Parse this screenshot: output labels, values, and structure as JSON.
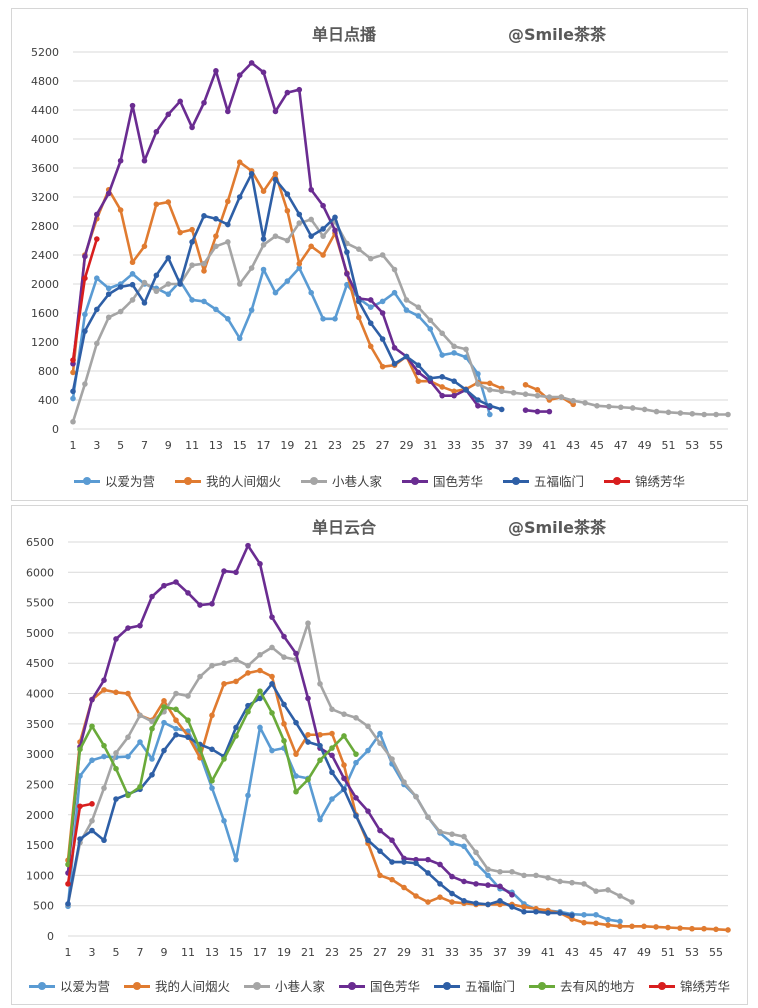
{
  "colors": {
    "以爱为营": "#5a9bd3",
    "我的人间烟火": "#e07b30",
    "小巷人家": "#a5a5a5",
    "国色芳华": "#6a2c91",
    "五福临门": "#2e5fa6",
    "去有风的地方": "#6aaa3a",
    "锦绣芳华": "#d81e1e"
  },
  "chart_data": [
    {
      "type": "line",
      "title": "单日点播",
      "watermark": "@Smile茶茶",
      "ylim": [
        0,
        5200
      ],
      "yticks": [
        0,
        400,
        800,
        1200,
        1600,
        2000,
        2400,
        2800,
        3200,
        3600,
        4000,
        4400,
        4800,
        5200
      ],
      "xlim": [
        1,
        56
      ],
      "xticks": [
        1,
        3,
        5,
        7,
        9,
        11,
        13,
        15,
        17,
        19,
        21,
        23,
        25,
        27,
        29,
        31,
        33,
        35,
        37,
        39,
        41,
        43,
        45,
        47,
        49,
        51,
        53,
        55
      ],
      "grid": "horizontal",
      "legend": "bottom",
      "series": [
        {
          "name": "以爱为营",
          "x_start": 1,
          "values": [
            420,
            1580,
            2080,
            1940,
            2000,
            2140,
            2000,
            1940,
            1860,
            2040,
            1780,
            1760,
            1650,
            1520,
            1250,
            1640,
            2200,
            1880,
            2040,
            2220,
            1880,
            1520,
            1520,
            1990,
            1800,
            1680,
            1760,
            1880,
            1640,
            1560,
            1380,
            1020,
            1050,
            990,
            760,
            200
          ]
        },
        {
          "name": "我的人间烟火",
          "x_start": 1,
          "values": [
            780,
            2400,
            2900,
            3300,
            3020,
            2300,
            2520,
            3100,
            3130,
            2710,
            2750,
            2180,
            2660,
            3140,
            3680,
            3560,
            3280,
            3520,
            3010,
            2280,
            2520,
            2400,
            2700,
            2150,
            1540,
            1140,
            860,
            880,
            1000,
            660,
            660,
            580,
            520,
            550,
            640,
            630,
            560,
            null,
            610,
            540,
            400,
            440,
            340
          ]
        },
        {
          "name": "小巷人家",
          "x_start": 1,
          "values": [
            100,
            620,
            1180,
            1540,
            1620,
            1780,
            2020,
            1900,
            2000,
            2000,
            2260,
            2280,
            2520,
            2580,
            2000,
            2220,
            2540,
            2660,
            2600,
            2840,
            2890,
            2660,
            2860,
            2560,
            2480,
            2350,
            2400,
            2200,
            1780,
            1680,
            1500,
            1320,
            1140,
            1100,
            620,
            540,
            520,
            500,
            480,
            460,
            440,
            440,
            390,
            360,
            320,
            310,
            300,
            290,
            270,
            240,
            230,
            220,
            210,
            200,
            200,
            200
          ]
        },
        {
          "name": "国色芳华",
          "x_start": 1,
          "values": [
            900,
            2380,
            2960,
            3250,
            3700,
            4460,
            3700,
            4100,
            4340,
            4520,
            4160,
            4500,
            4940,
            4380,
            4880,
            5050,
            4920,
            4380,
            4640,
            4680,
            3300,
            3080,
            2740,
            2140,
            1800,
            1780,
            1600,
            1120,
            1000,
            780,
            660,
            460,
            460,
            540,
            320,
            300,
            null,
            null,
            260,
            240,
            240
          ]
        },
        {
          "name": "五福临门",
          "x_start": 1,
          "values": [
            520,
            1350,
            1650,
            1860,
            1960,
            1990,
            1740,
            2120,
            2360,
            2000,
            2580,
            2940,
            2900,
            2820,
            3200,
            3520,
            2620,
            3440,
            3240,
            2960,
            2660,
            2760,
            2920,
            2440,
            1760,
            1460,
            1240,
            900,
            1000,
            880,
            700,
            720,
            660,
            540,
            400,
            320,
            270
          ]
        },
        {
          "name": "锦绣芳华",
          "x_start": 1,
          "values": [
            950,
            2080,
            2620
          ]
        }
      ]
    },
    {
      "type": "line",
      "title": "单日云合",
      "watermark": "@Smile茶茶",
      "ylim": [
        0,
        6500
      ],
      "yticks": [
        0,
        500,
        1000,
        1500,
        2000,
        2500,
        3000,
        3500,
        4000,
        4500,
        5000,
        5500,
        6000,
        6500
      ],
      "xlim": [
        1,
        56
      ],
      "xticks": [
        1,
        3,
        5,
        7,
        9,
        11,
        13,
        15,
        17,
        19,
        21,
        23,
        25,
        27,
        29,
        31,
        33,
        35,
        37,
        39,
        41,
        43,
        45,
        47,
        49,
        51,
        53,
        55
      ],
      "grid": "horizontal",
      "legend": "bottom",
      "series": [
        {
          "name": "以爱为营",
          "x_start": 1,
          "values": [
            490,
            2640,
            2900,
            2960,
            2950,
            2960,
            3200,
            2920,
            3520,
            3420,
            3380,
            3000,
            2440,
            1900,
            1260,
            2320,
            3440,
            3060,
            3100,
            2640,
            2600,
            1920,
            2260,
            2420,
            2860,
            3060,
            3340,
            2840,
            2500,
            2300,
            1960,
            1700,
            1530,
            1480,
            1200,
            1000,
            780,
            720,
            530,
            440,
            420,
            400,
            360,
            350,
            350,
            270,
            240
          ]
        },
        {
          "name": "我的人间烟火",
          "x_start": 1,
          "values": [
            1250,
            3200,
            3900,
            4060,
            4020,
            4000,
            3640,
            3560,
            3880,
            3560,
            3300,
            2940,
            3640,
            4160,
            4200,
            4340,
            4380,
            4280,
            3500,
            3000,
            3320,
            3320,
            3340,
            2820,
            2000,
            1530,
            1000,
            930,
            800,
            660,
            560,
            640,
            560,
            540,
            520,
            520,
            520,
            520,
            480,
            450,
            420,
            380,
            280,
            220,
            210,
            180,
            160,
            160,
            160,
            150,
            140,
            130,
            120,
            120,
            110,
            100
          ]
        },
        {
          "name": "小巷人家",
          "x_start": 1,
          "values": [
            520,
            1540,
            1900,
            2440,
            3020,
            3280,
            3640,
            3540,
            3700,
            4000,
            3960,
            4280,
            4460,
            4500,
            4560,
            4460,
            4640,
            4760,
            4600,
            4560,
            5160,
            4160,
            3740,
            3660,
            3600,
            3460,
            3180,
            2920,
            2540,
            2300,
            1960,
            1720,
            1680,
            1640,
            1380,
            1100,
            1060,
            1060,
            1000,
            1000,
            960,
            900,
            880,
            860,
            740,
            760,
            660,
            560
          ]
        },
        {
          "name": "国色芳华",
          "x_start": 1,
          "values": [
            1040,
            3120,
            3900,
            4220,
            4900,
            5080,
            5120,
            5600,
            5780,
            5840,
            5660,
            5460,
            5480,
            6020,
            6000,
            6440,
            6140,
            5260,
            4940,
            4660,
            3920,
            3100,
            2980,
            2600,
            2280,
            2060,
            1740,
            1580,
            1280,
            1260,
            1260,
            1180,
            980,
            900,
            860,
            840,
            820,
            680
          ]
        },
        {
          "name": "五福临门",
          "x_start": 1,
          "values": [
            530,
            1600,
            1740,
            1580,
            2260,
            2340,
            2420,
            2660,
            3060,
            3320,
            3280,
            3160,
            3080,
            2960,
            3440,
            3800,
            3920,
            4160,
            3820,
            3520,
            3200,
            3140,
            2700,
            2420,
            1980,
            1580,
            1400,
            1220,
            1220,
            1200,
            1040,
            860,
            700,
            580,
            540,
            520,
            580,
            480,
            400,
            400,
            380,
            380,
            340
          ]
        },
        {
          "name": "去有风的地方",
          "x_start": 1,
          "values": [
            1180,
            3080,
            3460,
            3140,
            2760,
            2320,
            2460,
            3420,
            3780,
            3740,
            3560,
            3080,
            2560,
            2920,
            3300,
            3700,
            4040,
            3680,
            3220,
            2380,
            2580,
            2900,
            3100,
            3300,
            3000
          ]
        },
        {
          "name": "锦绣芳华",
          "x_start": 1,
          "values": [
            860,
            2140,
            2180
          ]
        }
      ]
    }
  ]
}
